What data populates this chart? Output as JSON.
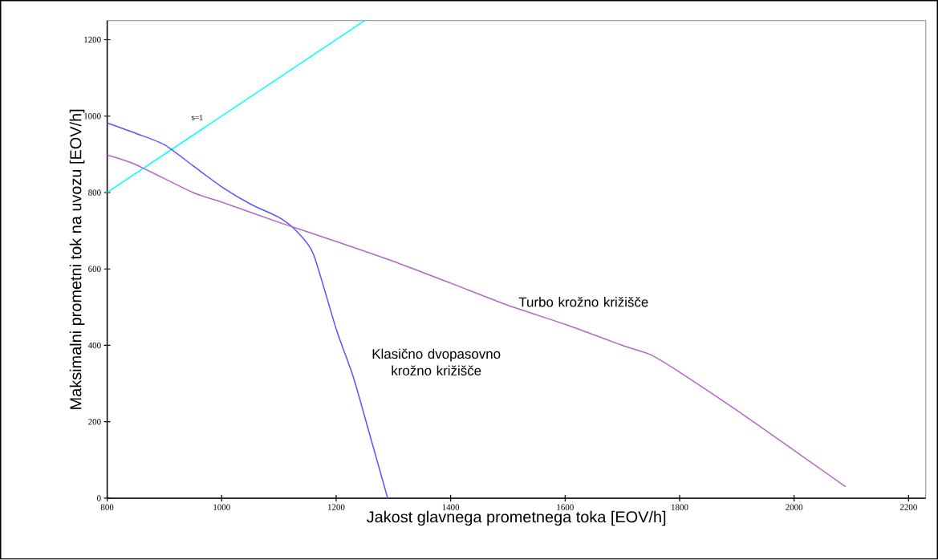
{
  "chart_data": {
    "type": "line",
    "xlabel": "Jakost glavnega prometnega toka [EOV/h]",
    "ylabel": "Maksimalni prometni tok na uvozu [EOV/h]",
    "xlim": [
      800,
      2230
    ],
    "ylim": [
      0,
      1250
    ],
    "xticks": [
      800,
      1000,
      1200,
      1400,
      1600,
      1800,
      2000,
      2200
    ],
    "yticks": [
      0,
      200,
      400,
      600,
      800,
      1000,
      1200
    ],
    "grid": false,
    "legend": false,
    "marker": "none",
    "line_style": "solid",
    "series": [
      {
        "name": "s=1",
        "color": "#00ffff",
        "x": [
          800,
          1250
        ],
        "values": [
          800,
          1250
        ]
      },
      {
        "name": "Klasično dvopasovno krožno križišče",
        "color": "#5555ff",
        "x": [
          800,
          850,
          900,
          950,
          1000,
          1050,
          1100,
          1130,
          1160,
          1200,
          1230,
          1258,
          1290
        ],
        "values": [
          982,
          955,
          925,
          870,
          815,
          770,
          735,
          700,
          640,
          443,
          317,
          170,
          0
        ]
      },
      {
        "name": "Turbo krožno križišče",
        "color": "#b565c6",
        "x": [
          800,
          850,
          950,
          1000,
          1100,
          1200,
          1300,
          1400,
          1500,
          1600,
          1700,
          1750,
          1800,
          1900,
          2000,
          2090
        ],
        "values": [
          898,
          873,
          800,
          775,
          722,
          672,
          620,
          563,
          505,
          455,
          400,
          375,
          330,
          230,
          125,
          30
        ]
      }
    ]
  }
}
